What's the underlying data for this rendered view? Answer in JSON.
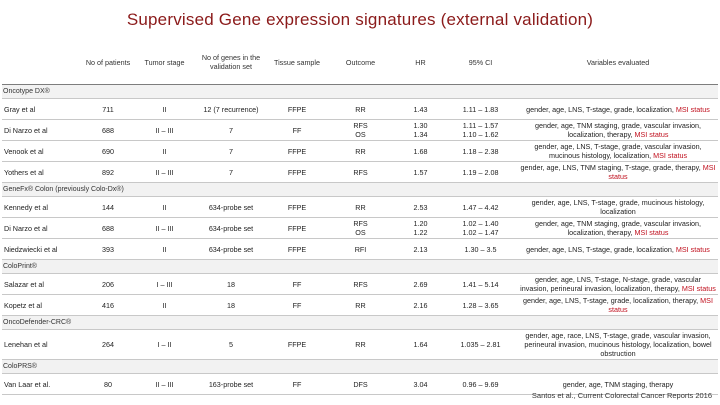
{
  "title": "Supervised Gene expression signatures (external validation)",
  "columns": [
    "No of patients",
    "Tumor stage",
    "No of genes in the validation set",
    "Tissue sample",
    "Outcome",
    "HR",
    "95% CI",
    "Variables evaluated"
  ],
  "groups": [
    {
      "name": "Oncotype DX®",
      "rows": [
        {
          "study": "Gray et al",
          "patients": "711",
          "stage": "II",
          "genes": "12 (7 recurrence)",
          "tissue": "FFPE",
          "outcome": "RR",
          "hr": "1.43",
          "ci": "1.11 – 1.83",
          "vars_plain": "gender, age, LNS, T-stage, grade, localization, ",
          "vars_msi": "MSI status"
        },
        {
          "study": "Di Narzo et al",
          "patients": "688",
          "stage": "II – III",
          "genes": "7",
          "tissue": "FF",
          "outcome": "RFS\nOS",
          "hr": "1.30\n1.34",
          "ci": "1.11 – 1.57\n1.10 – 1.62",
          "vars_plain": "gender, age, TNM staging, grade, vascular invasion, localization, therapy, ",
          "vars_msi": "MSI status"
        },
        {
          "study": "Venook et al",
          "patients": "690",
          "stage": "II",
          "genes": "7",
          "tissue": "FFPE",
          "outcome": "RR",
          "hr": "1.68",
          "ci": "1.18 – 2.38",
          "vars_plain": "gender, age, LNS, T-stage, grade, vascular invasion, mucinous histology, localization, ",
          "vars_msi": "MSI status"
        },
        {
          "study": "Yothers et al",
          "patients": "892",
          "stage": "II – III",
          "genes": "7",
          "tissue": "FFPE",
          "outcome": "RFS",
          "hr": "1.57",
          "ci": "1.19 – 2.08",
          "vars_plain": "gender, age, LNS, TNM staging, T-stage, grade, therapy, ",
          "vars_msi": "MSI status"
        }
      ]
    },
    {
      "name": "GeneFx® Colon  (previously Colo-Dx®)",
      "rows": [
        {
          "study": "Kennedy et al",
          "patients": "144",
          "stage": "II",
          "genes": "634-probe set",
          "tissue": "FFPE",
          "outcome": "RR",
          "hr": "2.53",
          "ci": "1.47 – 4.42",
          "vars_plain": "gender, age, LNS, T-stage, grade, mucinous histology, localization",
          "vars_msi": ""
        },
        {
          "study": "Di Narzo et al",
          "patients": "688",
          "stage": "II – III",
          "genes": "634-probe set",
          "tissue": "FFPE",
          "outcome": "RFS\nOS",
          "hr": "1.20\n1.22",
          "ci": "1.02 – 1.40\n1.02 – 1.47",
          "vars_plain": "gender, age, TNM staging, grade, vascular invasion, localization, therapy, ",
          "vars_msi": "MSI status"
        },
        {
          "study": "Niedzwiecki et al",
          "patients": "393",
          "stage": "II",
          "genes": "634-probe set",
          "tissue": "FFPE",
          "outcome": "RFI",
          "hr": "2.13",
          "ci": "1.30 – 3.5",
          "vars_plain": "gender, age, LNS, T-stage, grade, localization, ",
          "vars_msi": "MSI status"
        }
      ]
    },
    {
      "name": "ColoPrint®",
      "rows": [
        {
          "study": "Salazar et al",
          "patients": "206",
          "stage": "I – III",
          "genes": "18",
          "tissue": "FF",
          "outcome": "RFS",
          "hr": "2.69",
          "ci": "1.41 – 5.14",
          "vars_plain": "gender, age, LNS, T-stage, N-stage, grade, vascular invasion, perineural invasion, localization, therapy, ",
          "vars_msi": "MSI status"
        },
        {
          "study": "Kopetz et al",
          "patients": "416",
          "stage": "II",
          "genes": "18",
          "tissue": "FF",
          "outcome": "RR",
          "hr": "2.16",
          "ci": "1.28 – 3.65",
          "vars_plain": "gender, age, LNS, T-stage, grade, localization, therapy, ",
          "vars_msi": "MSI status"
        }
      ]
    },
    {
      "name": "OncoDefender-CRC®",
      "rows": [
        {
          "study": "Lenehan et al",
          "patients": "264",
          "stage": "I – II",
          "genes": "5",
          "tissue": "FFPE",
          "outcome": "RR",
          "hr": "1.64",
          "ci": "1.035 – 2.81",
          "vars_plain": "gender, age, race, LNS, T-stage, grade, vascular invasion, perineural invasion, mucinous histology, localization, bowel obstruction",
          "vars_msi": ""
        }
      ]
    },
    {
      "name": "ColoPRS®",
      "rows": [
        {
          "study": "Van Laar et al.",
          "patients": "80",
          "stage": "II – III",
          "genes": "163-probe set",
          "tissue": "FF",
          "outcome": "DFS",
          "hr": "3.04",
          "ci": "0.96 – 9.69",
          "vars_plain": "gender, age, TNM staging, therapy",
          "vars_msi": ""
        }
      ]
    }
  ],
  "footer": "Santos et al., Current Colorectal Cancer Reports 2016",
  "colors": {
    "title": "#8b1a1a",
    "msi": "#c0101e"
  }
}
